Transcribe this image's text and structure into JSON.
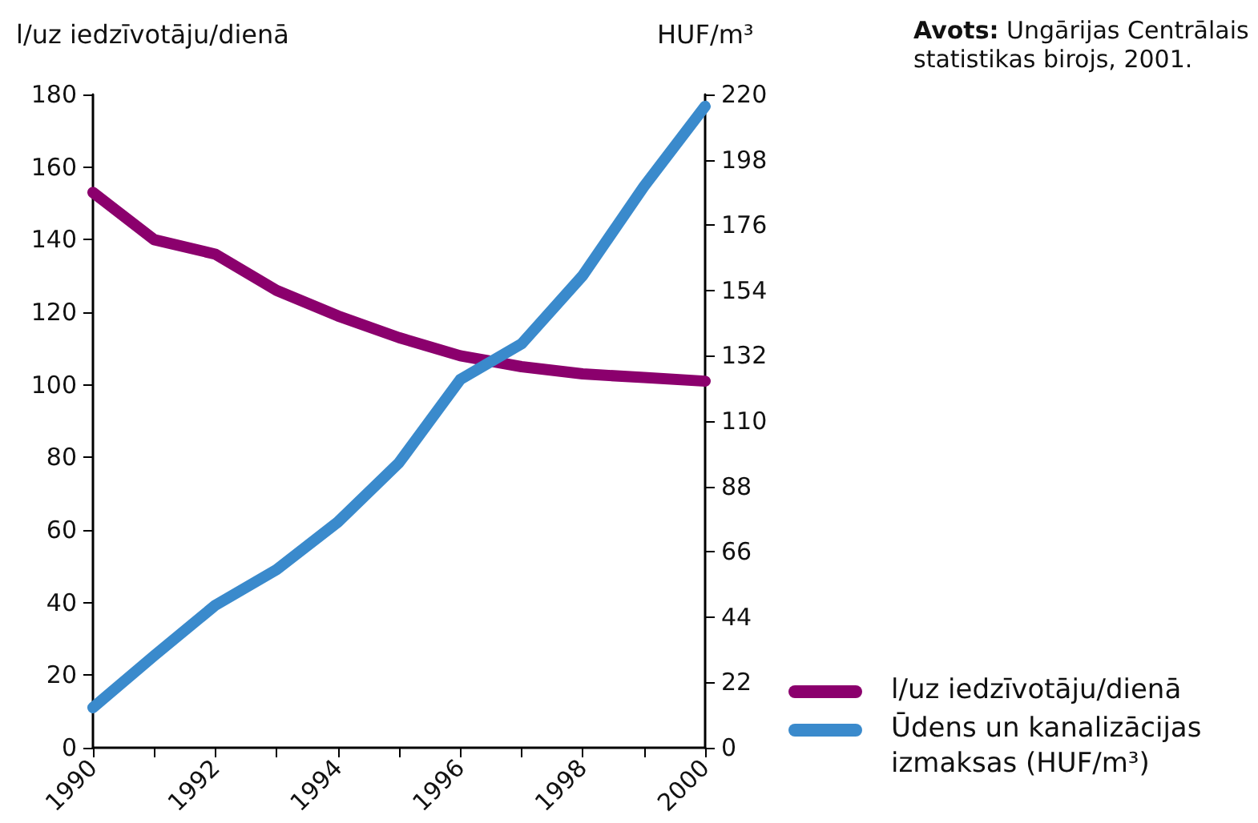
{
  "chart_data": {
    "type": "line",
    "ylabel": "l/uz iedzīvotāju/dienā",
    "y2label": "HUF/m³",
    "x": [
      1990,
      1991,
      1992,
      1993,
      1994,
      1995,
      1996,
      1997,
      1998,
      1999,
      2000
    ],
    "series": [
      {
        "name": "l/uz iedzīvotāju/dienā",
        "color": "#8b006d",
        "values": [
          153,
          140,
          136,
          126,
          119,
          113,
          108,
          105,
          103,
          102,
          101
        ]
      },
      {
        "name": "Ūdens un kanalizācijas izmaksas (HUF/m³)",
        "color": "#3a8acc",
        "axis": "y2",
        "values": [
          13.5,
          31,
          48,
          60,
          76,
          96,
          124,
          136,
          159,
          189,
          216
        ]
      }
    ],
    "xlim": [
      1990,
      2000
    ],
    "xticks": [
      1990,
      {
        "value": 1991,
        "label": null
      },
      1992,
      {
        "value": 1993,
        "label": null
      },
      1994,
      {
        "value": 1995,
        "label": null
      },
      1996,
      {
        "value": 1997,
        "label": null
      },
      1998,
      {
        "value": 1999,
        "label": null
      },
      2000
    ],
    "ylim": [
      0,
      180
    ],
    "yticks": [
      0,
      20,
      40,
      60,
      80,
      100,
      120,
      140,
      160,
      180
    ],
    "y2lim": [
      0,
      220
    ],
    "y2ticks": [
      0,
      22,
      44,
      66,
      88,
      110,
      132,
      154,
      176,
      198,
      220
    ],
    "annotations": [
      "Avots: Ungārijas Centrālais statistikas birojs, 2001."
    ],
    "legend": "bottom right",
    "grid": false,
    "marker": "none",
    "line_style": "solid"
  }
}
